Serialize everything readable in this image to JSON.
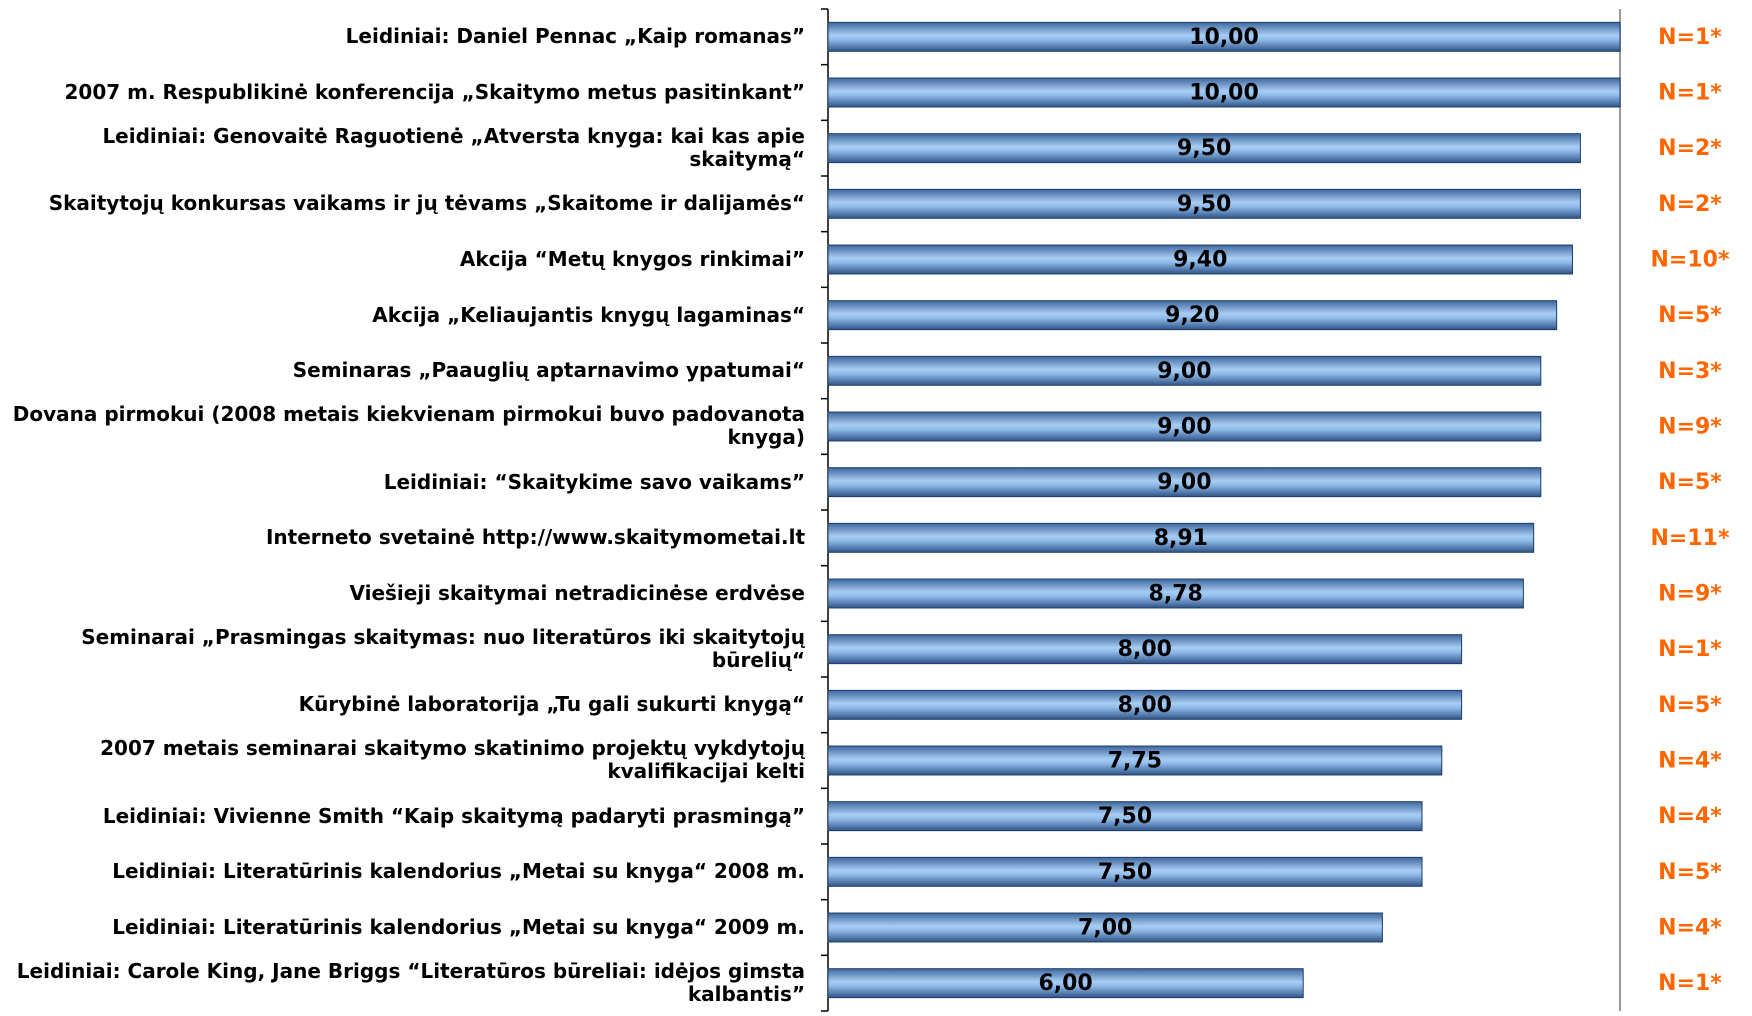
{
  "chart_data": {
    "type": "hbar",
    "categories": [
      "Leidiniai: Daniel Pennac „Kaip romanas”",
      "2007 m. Respublikinė konferencija „Skaitymo metus pasitinkant”",
      "Leidiniai: Genovaitė Raguotienė „Atversta knyga: kai kas apie skaitymą“",
      "Skaitytojų konkursas vaikams ir jų tėvams „Skaitome ir dalijamės“",
      "Akcija “Metų knygos rinkimai”",
      "Akcija „Keliaujantis knygų lagaminas“",
      "Seminaras „Paauglių aptarnavimo ypatumai“",
      "Dovana pirmokui (2008 metais kiekvienam pirmokui buvo padovanota knyga)",
      "Leidiniai: “Skaitykime savo vaikams”",
      "Interneto svetainė http://www.skaitymometai.lt",
      "Viešieji skaitymai netradicinėse erdvėse",
      "Seminarai „Prasmingas skaitymas: nuo literatūros iki skaitytojų būrelių“",
      "Kūrybinė laboratorija „Tu gali sukurti knygą“",
      "2007 metais seminarai skaitymo skatinimo projektų vykdytojų kvalifikacijai kelti",
      "Leidiniai: Vivienne Smith “Kaip skaitymą padaryti prasmingą”",
      "Leidiniai: Literatūrinis kalendorius „Metai su knyga“ 2008 m.",
      "Leidiniai: Literatūrinis kalendorius „Metai su knyga“ 2009 m.",
      "Leidiniai: Carole King, Jane Briggs “Literatūros būreliai: idėjos gimsta kalbantis”"
    ],
    "values": [
      10,
      10,
      9.5,
      9.5,
      9.4,
      9.2,
      9,
      9,
      9,
      8.91,
      8.78,
      8,
      8,
      7.75,
      7.5,
      7.5,
      7,
      6
    ],
    "value_labels": [
      "10,00",
      "10,00",
      "9,50",
      "9,50",
      "9,40",
      "9,20",
      "9,00",
      "9,00",
      "9,00",
      "8,91",
      "8,78",
      "8,00",
      "8,00",
      "7,75",
      "7,50",
      "7,50",
      "7,00",
      "6,00"
    ],
    "annotations": [
      "N=1*",
      "N=1*",
      "N=2*",
      "N=2*",
      "N=10*",
      "N=5*",
      "N=3*",
      "N=9*",
      "N=5*",
      "N=11*",
      "N=9*",
      "N=1*",
      "N=5*",
      "N=4*",
      "N=4*",
      "N=5*",
      "N=4*",
      "N=1*"
    ],
    "xlim": [
      0,
      10
    ],
    "color": "#6fa3dd"
  }
}
